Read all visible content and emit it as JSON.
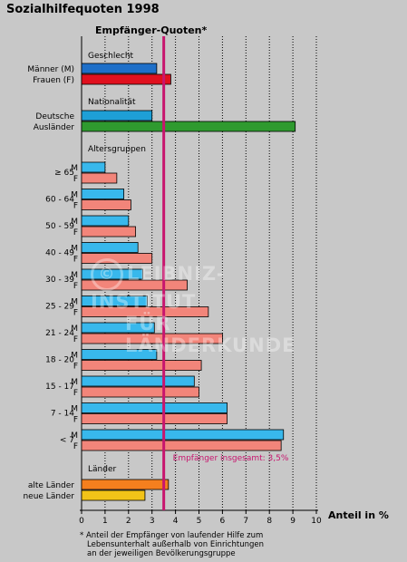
{
  "title": "Sozialhilfequoten 1998",
  "chart_data": {
    "type": "bar",
    "orientation": "horizontal",
    "title": "Empfänger-Quoten*",
    "xlabel": "Anteil in %",
    "xlim": [
      0,
      10
    ],
    "x_ticks": [
      "0",
      "1",
      "2",
      "3",
      "4",
      "5",
      "6",
      "7",
      "8",
      "9",
      "10"
    ],
    "grid": "vertical dotted",
    "reference_line": {
      "value": 3.5,
      "label": "Empfänger insgesamt: 3,5%",
      "color": "#c8156e"
    },
    "groups": [
      {
        "name": "Geschlecht",
        "bars": [
          {
            "label": "Männer (M)",
            "value": 3.2,
            "color": "#1e6fc8"
          },
          {
            "label": "Frauen (F)",
            "value": 3.8,
            "color": "#e0101e"
          }
        ]
      },
      {
        "name": "Nationalität",
        "bars": [
          {
            "label": "Deutsche",
            "value": 3.0,
            "color": "#1e9fd6"
          },
          {
            "label": "Ausländer",
            "value": 9.1,
            "color": "#2f9a2f"
          }
        ]
      },
      {
        "name": "Altersgruppen",
        "age_groups": [
          {
            "label": "≥ 65",
            "m": 1.0,
            "f": 1.5
          },
          {
            "label": "60 - 64",
            "m": 1.8,
            "f": 2.1
          },
          {
            "label": "50 - 59",
            "m": 2.0,
            "f": 2.3
          },
          {
            "label": "40 - 49",
            "m": 2.4,
            "f": 3.0
          },
          {
            "label": "30 - 39",
            "m": 2.6,
            "f": 4.5
          },
          {
            "label": "25 - 29",
            "m": 2.8,
            "f": 5.4
          },
          {
            "label": "21 - 24",
            "m": 3.1,
            "f": 6.0
          },
          {
            "label": "18 - 20",
            "m": 3.2,
            "f": 5.1
          },
          {
            "label": "15 - 17",
            "m": 4.8,
            "f": 5.0
          },
          {
            "label": "7 - 14",
            "m": 6.2,
            "f": 6.2
          },
          {
            "label": "< 7",
            "m": 8.6,
            "f": 8.5
          }
        ],
        "m_label": "M",
        "f_label": "F",
        "m_color": "#38b8ec",
        "f_color": "#f2857a"
      },
      {
        "name": "Länder",
        "bars": [
          {
            "label": "alte Länder",
            "value": 3.7,
            "color": "#f57f1e"
          },
          {
            "label": "neue Länder",
            "value": 2.7,
            "color": "#f2c318"
          }
        ]
      }
    ]
  },
  "footnote": [
    "* Anteil der Empfänger von laufender Hilfe zum",
    "Lebensunterhalt außerhalb von Einrichtungen",
    "an der jeweiligen Bevölkerungsgruppe"
  ],
  "watermark": {
    "symbol": "©",
    "line1": "LEIBNIZ-INSTITUT",
    "line2": "FÜR LÄNDERKUNDE"
  }
}
